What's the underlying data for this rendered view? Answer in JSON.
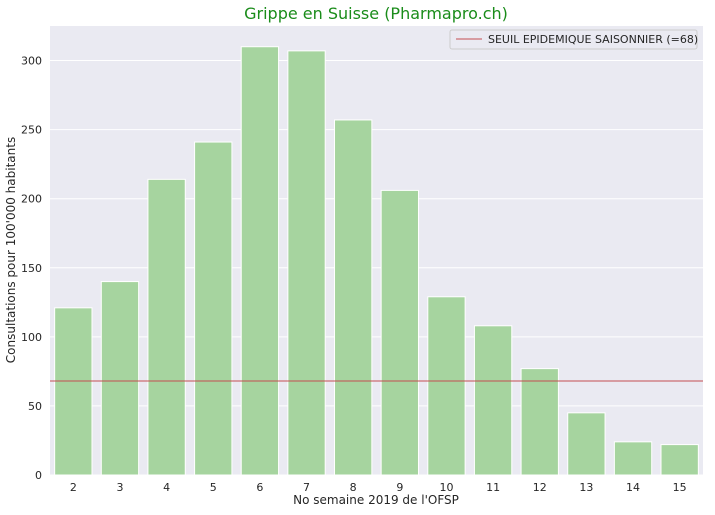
{
  "chart_data": {
    "type": "bar",
    "title": "Grippe en Suisse (Pharmapro.ch)",
    "xlabel": "No semaine 2019 de l'OFSP",
    "ylabel": "Consultations pour 100'000 habitants",
    "categories": [
      "2",
      "3",
      "4",
      "5",
      "6",
      "7",
      "8",
      "9",
      "10",
      "11",
      "12",
      "13",
      "14",
      "15"
    ],
    "values": [
      121,
      140,
      214,
      241,
      310,
      307,
      257,
      206,
      129,
      108,
      77,
      45,
      24,
      22
    ],
    "ylim": [
      0,
      325
    ],
    "yticks": [
      0,
      50,
      100,
      150,
      200,
      250,
      300
    ],
    "grid": true,
    "threshold": {
      "value": 68,
      "label": "SEUIL EPIDEMIQUE SAISONNIER (=68)"
    },
    "legend": {
      "placement": "top-right",
      "entries": [
        "SEUIL EPIDEMIQUE SAISONNIER (=68)"
      ]
    },
    "colors": {
      "bar": "#a6d49f",
      "background": "#eaeaf2",
      "grid": "#ffffff",
      "threshold": "#c44e52",
      "title": "#1a8c1a"
    }
  }
}
